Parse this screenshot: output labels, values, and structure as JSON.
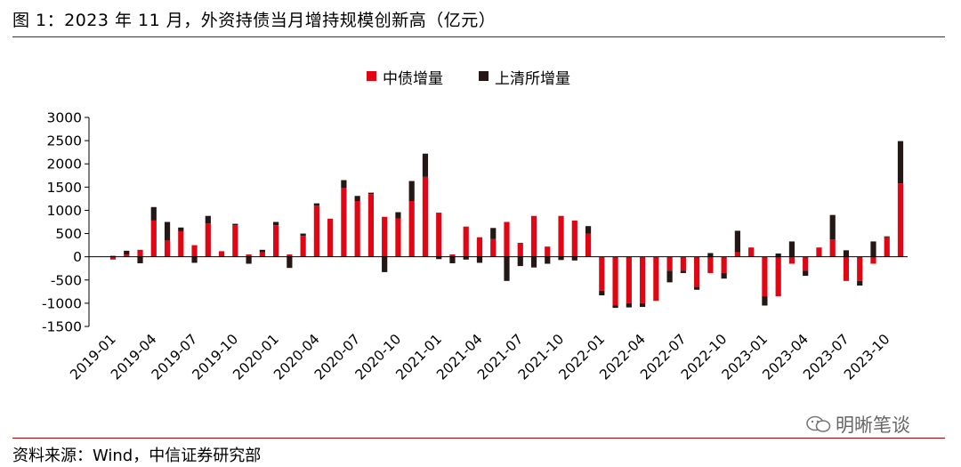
{
  "title": "图 1：2023 年 11 月，外资持债当月增持规模创新高（亿元）",
  "source": "资料来源：Wind，中信证券研究部",
  "watermark": "明晰笔谈",
  "colors": {
    "series1": "#e00613",
    "series2": "#231815",
    "rule": "#b00000"
  },
  "chart_data": {
    "type": "bar",
    "stacked": true,
    "legend_position": "top-center",
    "ylim": [
      -1500,
      3000
    ],
    "yticks": [
      -1500,
      -1000,
      -500,
      0,
      500,
      1000,
      1500,
      2000,
      2500,
      3000
    ],
    "xtick_labels": [
      "2019-01",
      "2019-04",
      "2019-07",
      "2019-10",
      "2020-01",
      "2020-04",
      "2020-07",
      "2020-10",
      "2021-01",
      "2021-04",
      "2021-07",
      "2021-10",
      "2022-01",
      "2022-04",
      "2022-07",
      "2022-10",
      "2023-01",
      "2023-04",
      "2023-07",
      "2023-10"
    ],
    "categories": [
      "2019-01",
      "2019-02",
      "2019-03",
      "2019-04",
      "2019-05",
      "2019-06",
      "2019-07",
      "2019-08",
      "2019-09",
      "2019-10",
      "2019-11",
      "2019-12",
      "2020-01",
      "2020-02",
      "2020-03",
      "2020-04",
      "2020-05",
      "2020-06",
      "2020-07",
      "2020-08",
      "2020-09",
      "2020-10",
      "2020-11",
      "2020-12",
      "2021-01",
      "2021-02",
      "2021-03",
      "2021-04",
      "2021-05",
      "2021-06",
      "2021-07",
      "2021-08",
      "2021-09",
      "2021-10",
      "2021-11",
      "2021-12",
      "2022-01",
      "2022-02",
      "2022-03",
      "2022-04",
      "2022-05",
      "2022-06",
      "2022-07",
      "2022-08",
      "2022-09",
      "2022-10",
      "2022-11",
      "2022-12",
      "2023-01",
      "2023-02",
      "2023-03",
      "2023-04",
      "2023-05",
      "2023-06",
      "2023-07",
      "2023-08",
      "2023-09",
      "2023-10",
      "2023-11"
    ],
    "series": [
      {
        "name": "中债增量",
        "values": [
          -60,
          50,
          150,
          780,
          350,
          550,
          250,
          720,
          120,
          680,
          50,
          100,
          680,
          50,
          450,
          1100,
          820,
          1480,
          1200,
          1350,
          860,
          820,
          1200,
          1720,
          950,
          50,
          650,
          420,
          380,
          750,
          300,
          880,
          220,
          880,
          780,
          500,
          -730,
          -1050,
          -1000,
          -1000,
          -950,
          -300,
          -300,
          -650,
          -350,
          -350,
          100,
          200,
          -850,
          -850,
          -150,
          -300,
          200,
          370,
          -520,
          -520,
          -150,
          420,
          1580
        ]
      },
      {
        "name": "上清所增量",
        "values": [
          20,
          80,
          -140,
          290,
          400,
          80,
          -130,
          160,
          0,
          30,
          -150,
          50,
          70,
          -240,
          50,
          50,
          0,
          170,
          110,
          30,
          -330,
          140,
          430,
          500,
          -50,
          -140,
          -60,
          -130,
          240,
          -520,
          -200,
          -230,
          -150,
          -70,
          -80,
          160,
          -100,
          -50,
          -90,
          -80,
          0,
          -250,
          -50,
          -60,
          80,
          -120,
          460,
          0,
          -200,
          70,
          330,
          -110,
          0,
          530,
          140,
          -100,
          330,
          20,
          910
        ]
      }
    ]
  }
}
